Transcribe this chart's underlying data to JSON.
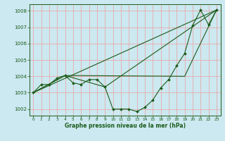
{
  "bg_color": "#cce8f0",
  "plot_bg_color": "#cce8f0",
  "grid_color": "#e8aaaa",
  "line_color": "#1a5c1a",
  "marker_color": "#1a5c1a",
  "xlabel": "Graphe pression niveau de la mer (hPa)",
  "xlim": [
    -0.5,
    23.5
  ],
  "ylim": [
    1001.6,
    1008.4
  ],
  "yticks": [
    1002,
    1003,
    1004,
    1005,
    1006,
    1007,
    1008
  ],
  "xticks": [
    0,
    1,
    2,
    3,
    4,
    5,
    6,
    7,
    8,
    9,
    10,
    11,
    12,
    13,
    14,
    15,
    16,
    17,
    18,
    19,
    20,
    21,
    22,
    23
  ],
  "series_main": {
    "x": [
      0,
      1,
      2,
      3,
      4,
      5,
      6,
      7,
      8,
      9,
      10,
      11,
      12,
      13,
      14,
      15,
      16,
      17,
      18,
      19,
      20,
      21,
      22,
      23
    ],
    "y": [
      1003.0,
      1003.5,
      1003.5,
      1003.9,
      1004.05,
      1003.6,
      1003.5,
      1003.8,
      1003.8,
      1003.35,
      1002.0,
      1002.0,
      1002.0,
      1001.85,
      1002.1,
      1002.55,
      1003.3,
      1003.8,
      1004.65,
      1005.4,
      1007.1,
      1008.05,
      1007.15,
      1008.05
    ]
  },
  "series_upper": {
    "x": [
      0,
      23
    ],
    "y": [
      1003.0,
      1008.05
    ]
  },
  "series_lower": {
    "x": [
      0,
      4,
      9,
      23
    ],
    "y": [
      1003.0,
      1004.05,
      1003.35,
      1008.05
    ]
  },
  "series_envelope": {
    "x": [
      0,
      4,
      19,
      23
    ],
    "y": [
      1003.0,
      1004.05,
      1004.0,
      1008.05
    ]
  }
}
